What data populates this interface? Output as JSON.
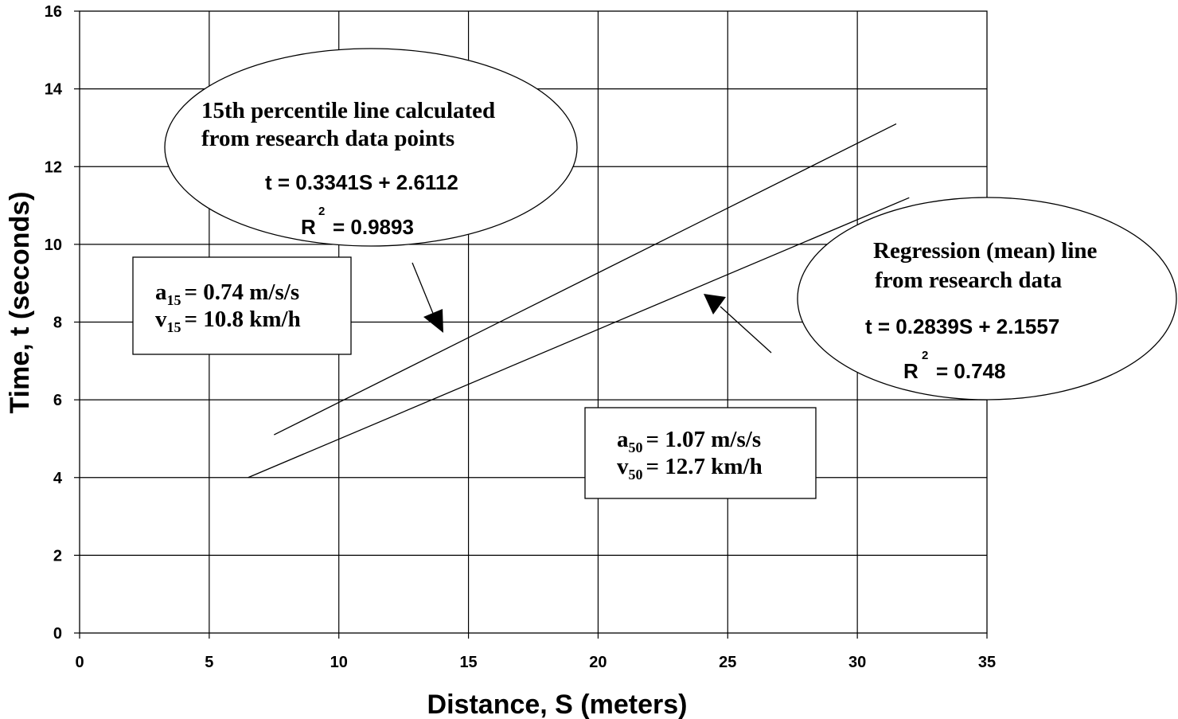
{
  "chart_data": {
    "type": "line",
    "xlabel": "Distance, S (meters)",
    "ylabel": "Time, t (seconds)",
    "xlim": [
      0,
      35
    ],
    "ylim": [
      0,
      16
    ],
    "xticks": [
      "0",
      "5",
      "10",
      "15",
      "20",
      "25",
      "30",
      "35"
    ],
    "yticks": [
      "0",
      "2",
      "4",
      "6",
      "8",
      "10",
      "12",
      "14",
      "16"
    ],
    "grid": true,
    "series": [
      {
        "id": "p15",
        "x": [
          7.5,
          31.5
        ],
        "y": [
          5.1,
          13.1
        ]
      },
      {
        "id": "mean",
        "x": [
          6.5,
          32
        ],
        "y": [
          4.0,
          11.2
        ]
      }
    ],
    "annotations": {
      "p15_callout": {
        "line1": "15th percentile line calculated",
        "line2": "from research data points",
        "equation": "t = 0.3341S + 2.6112",
        "r2_symbol": "R",
        "r2_exp": "2",
        "r2_value": "= 0.9893"
      },
      "p15_params": {
        "a_sym": "a",
        "a_sub": "15",
        "a_val": "= 0.74 m/s/s",
        "v_sym": "v",
        "v_sub": "15",
        "v_val": "= 10.8 km/h"
      },
      "mean_callout": {
        "line1": "Regression (mean) line",
        "line2": "from research data",
        "equation": "t = 0.2839S + 2.1557",
        "r2_symbol": "R",
        "r2_exp": "2",
        "r2_value": "= 0.748"
      },
      "mean_params": {
        "a_sym": "a",
        "a_sub": "50",
        "a_val": "= 1.07 m/s/s",
        "v_sym": "v",
        "v_sub": "50",
        "v_val": "= 12.7 km/h"
      }
    }
  }
}
